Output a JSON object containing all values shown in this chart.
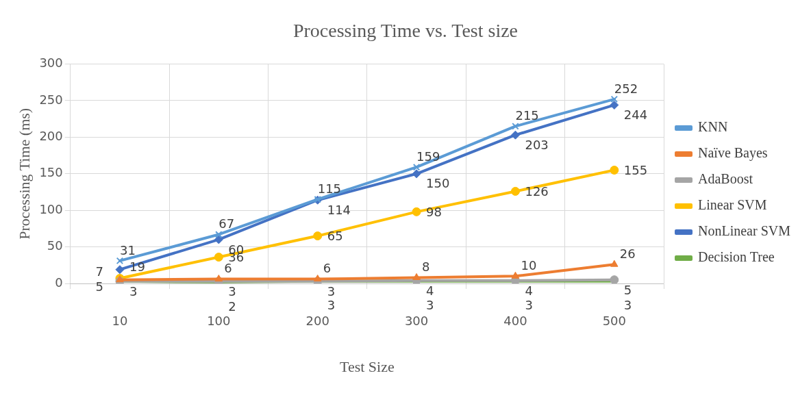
{
  "chart_data": {
    "type": "line",
    "title": "Processing Time vs. Test size",
    "xlabel": "Test Size",
    "ylabel": "Processing Time (ms)",
    "categories": [
      "10",
      "100",
      "200",
      "300",
      "400",
      "500"
    ],
    "ylim": [
      0,
      300
    ],
    "yticks": [
      0,
      50,
      100,
      150,
      200,
      250,
      300
    ],
    "grid": true,
    "legend": "right",
    "data_labels": true,
    "series": [
      {
        "name": "KNN",
        "color": "#5b9bd5",
        "marker": "cross",
        "values": [
          31,
          67,
          115,
          159,
          215,
          252
        ]
      },
      {
        "name": "Naïve Bayes",
        "color": "#ed7d31",
        "marker": "triangle",
        "values": [
          5,
          6,
          6,
          8,
          10,
          26
        ]
      },
      {
        "name": "AdaBoost",
        "color": "#a5a5a5",
        "marker": "circle",
        "values": [
          3,
          3,
          3,
          4,
          4,
          5
        ]
      },
      {
        "name": "Linear SVM",
        "color": "#ffc000",
        "marker": "circle",
        "values": [
          7,
          36,
          65,
          98,
          126,
          155
        ]
      },
      {
        "name": "NonLinear SVM",
        "color": "#4472c4",
        "marker": "diamond",
        "values": [
          19,
          60,
          114,
          150,
          203,
          244
        ]
      },
      {
        "name": "Decision Tree",
        "color": "#70ad47",
        "marker": "none",
        "values": [
          3,
          2,
          3,
          3,
          3,
          3
        ],
        "value_labels": [
          null,
          "2",
          "3",
          "3",
          "3",
          "3"
        ]
      }
    ]
  }
}
